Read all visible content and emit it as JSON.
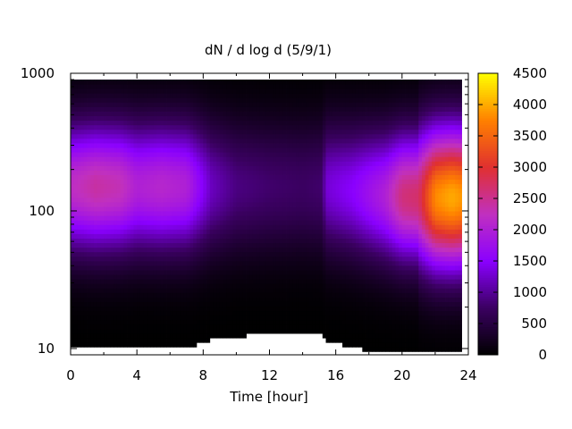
{
  "chart_data": {
    "type": "heatmap",
    "title": "dN / d log d (5/9/1)",
    "xlabel": "Time [hour]",
    "ylabel": "",
    "xlim": [
      0,
      24
    ],
    "ylim": [
      9,
      1000
    ],
    "yscale": "log",
    "x_ticks": [
      "0",
      "4",
      "8",
      "12",
      "16",
      "20",
      "24"
    ],
    "y_ticks": [
      "10",
      "100",
      "1000"
    ],
    "colorbar": {
      "range": [
        0,
        4500
      ],
      "ticks": [
        "0",
        "500",
        "1000",
        "1500",
        "2000",
        "2500",
        "3000",
        "3500",
        "4000",
        "4500"
      ],
      "colors": [
        "#000000",
        "#3a0060",
        "#8a00ff",
        "#c030c0",
        "#e03030",
        "#ff8000",
        "#ffff00"
      ]
    },
    "data_x_range": [
      0,
      23.5
    ],
    "data_y_range": [
      9.5,
      900
    ],
    "peak_diameter": [
      {
        "t": 0,
        "d": 150
      },
      {
        "t": 8,
        "d": 150
      },
      {
        "t": 15.3,
        "d": 150
      },
      {
        "t": 19,
        "d": 130
      },
      {
        "t": 22,
        "d": 125
      },
      {
        "t": 23.5,
        "d": 125
      }
    ],
    "peak_concentration": [
      {
        "t": 0,
        "v": 2200
      },
      {
        "t": 1.5,
        "v": 2400
      },
      {
        "t": 3,
        "v": 2300
      },
      {
        "t": 4,
        "v": 2000
      },
      {
        "t": 5.5,
        "v": 2100
      },
      {
        "t": 7,
        "v": 2000
      },
      {
        "t": 8.5,
        "v": 1200
      },
      {
        "t": 10,
        "v": 900
      },
      {
        "t": 12,
        "v": 800
      },
      {
        "t": 14,
        "v": 750
      },
      {
        "t": 15.2,
        "v": 800
      },
      {
        "t": 15.4,
        "v": 1300
      },
      {
        "t": 17,
        "v": 1500
      },
      {
        "t": 19,
        "v": 2000
      },
      {
        "t": 20,
        "v": 2600
      },
      {
        "t": 21,
        "v": 2700
      },
      {
        "t": 22,
        "v": 3800
      },
      {
        "t": 23,
        "v": 4000
      },
      {
        "t": 23.5,
        "v": 3900
      }
    ]
  }
}
